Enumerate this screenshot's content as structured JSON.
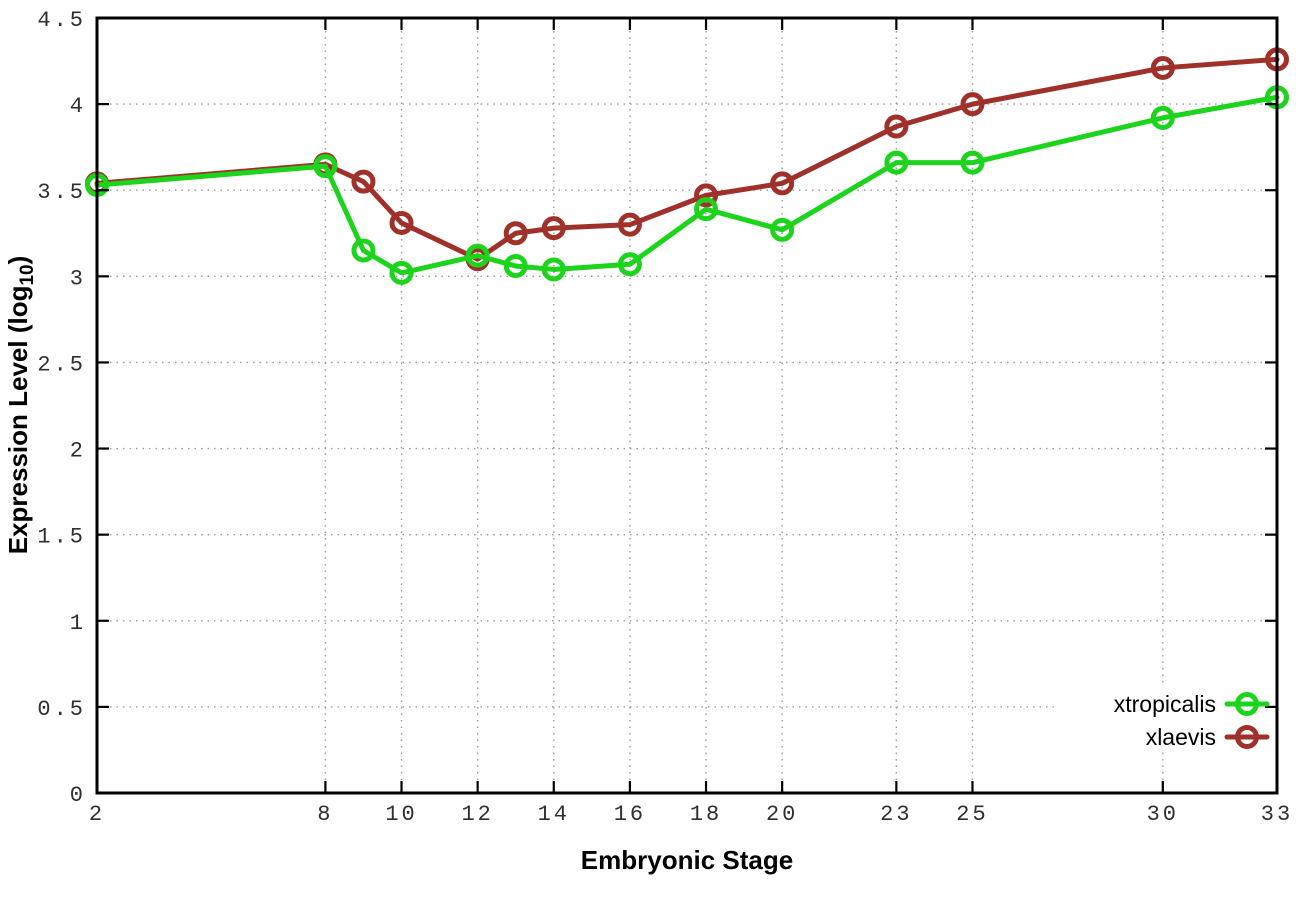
{
  "chart_data": {
    "type": "line",
    "title": "",
    "xlabel": "Embryonic Stage",
    "ylabel_parts": {
      "prefix": "Expression Level (log",
      "sub": "10",
      "suffix": ")"
    },
    "x": [
      2,
      8,
      9,
      10,
      12,
      13,
      14,
      16,
      18,
      20,
      23,
      25,
      30,
      33
    ],
    "series": [
      {
        "name": "xtropicalis",
        "color": "#1cd41c",
        "values": [
          3.53,
          3.64,
          3.15,
          3.02,
          3.12,
          3.06,
          3.04,
          3.07,
          3.39,
          3.27,
          3.66,
          3.66,
          3.92,
          4.04
        ]
      },
      {
        "name": "xlaevis",
        "color": "#a0302a",
        "values": [
          3.54,
          3.65,
          3.55,
          3.31,
          3.1,
          3.25,
          3.28,
          3.3,
          3.47,
          3.54,
          3.87,
          4.0,
          4.21,
          4.26
        ]
      }
    ],
    "x_ticks": [
      {
        "label": "2",
        "value": 2
      },
      {
        "label": "8",
        "value": 8
      },
      {
        "label": "10",
        "value": 10
      },
      {
        "label": "12",
        "value": 12
      },
      {
        "label": "14",
        "value": 14
      },
      {
        "label": "16",
        "value": 16
      },
      {
        "label": "18",
        "value": 18
      },
      {
        "label": "20",
        "value": 20
      },
      {
        "label": "23",
        "value": 23
      },
      {
        "label": "25",
        "value": 25
      },
      {
        "label": "30",
        "value": 30
      },
      {
        "label": "33",
        "value": 33
      }
    ],
    "y_ticks": [
      {
        "label": "0",
        "value": 0
      },
      {
        "label": "0.5",
        "value": 0.5
      },
      {
        "label": "1",
        "value": 1
      },
      {
        "label": "1.5",
        "value": 1.5
      },
      {
        "label": "2",
        "value": 2
      },
      {
        "label": "2.5",
        "value": 2.5
      },
      {
        "label": "3",
        "value": 3
      },
      {
        "label": "3.5",
        "value": 3.5
      },
      {
        "label": "4",
        "value": 4
      },
      {
        "label": "4.5",
        "value": 4.5
      }
    ],
    "xlim": [
      2,
      33
    ],
    "ylim": [
      0,
      4.5
    ],
    "grid": true,
    "legend_position": "bottom-right",
    "colors": {
      "grid": "#9a9a9a",
      "axis": "#000000",
      "tick_label": "#2f2f2f",
      "legend_background": "#ffffff"
    }
  }
}
